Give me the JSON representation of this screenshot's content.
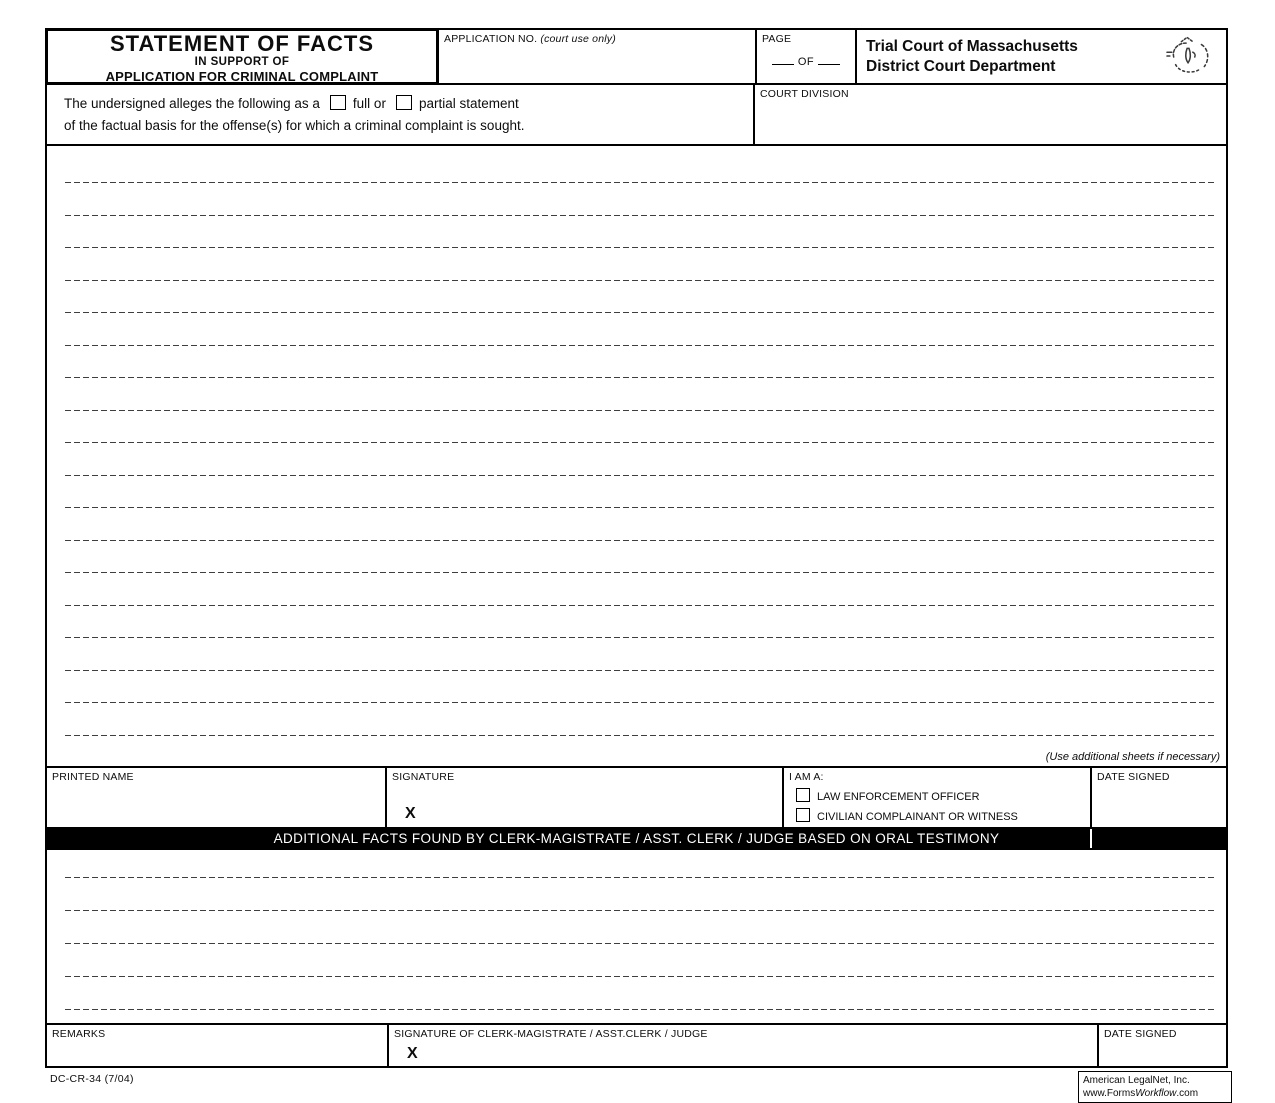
{
  "header": {
    "title": "STATEMENT OF FACTS",
    "subtitle1": "IN SUPPORT OF",
    "subtitle2": "APPLICATION FOR CRIMINAL COMPLAINT",
    "application_no": {
      "label": "APPLICATION NO.",
      "note": "(court use only)"
    },
    "page": {
      "label": "PAGE",
      "of_label": "OF"
    },
    "court": {
      "line1": "Trial Court of Massachusetts",
      "line2": "District Court Department",
      "seal_icon": "massachusetts-seal"
    }
  },
  "allegation": {
    "text_part1": "The undersigned alleges the following as a",
    "full_checkbox_label": "full or",
    "partial_checkbox_label": "partial statement",
    "text_part2": "of the factual basis for the offense(s) for which a criminal complaint is sought.",
    "full_checked": false,
    "partial_checked": false
  },
  "court_division": {
    "label": "COURT DIVISION"
  },
  "facts_area": {
    "line_count": 18,
    "note": "(Use additional sheets if necessary)"
  },
  "signer_row": {
    "printed_name_label": "PRINTED NAME",
    "signature_label": "SIGNATURE",
    "signature_x": "X",
    "role": {
      "label": "I AM A:",
      "options": [
        "LAW ENFORCEMENT OFFICER",
        "CIVILIAN COMPLAINANT OR WITNESS"
      ],
      "checked": [
        false,
        false
      ]
    },
    "date_signed_label": "DATE SIGNED"
  },
  "additional_facts": {
    "bar_text": "ADDITIONAL FACTS FOUND BY CLERK-MAGISTRATE / ASST. CLERK / JUDGE BASED ON ORAL TESTIMONY",
    "line_count": 5
  },
  "clerk_row": {
    "remarks_label": "REMARKS",
    "signature_label": "SIGNATURE OF CLERK-MAGISTRATE / ASST.CLERK / JUDGE",
    "signature_x": "X",
    "date_signed_label": "DATE SIGNED"
  },
  "footer": {
    "form_number": "DC-CR-34  (7/04)",
    "vendor_line1": "American LegalNet, Inc.",
    "vendor_url_prefix": "www.Forms",
    "vendor_url_italic": "Workflow",
    "vendor_url_suffix": ".com"
  }
}
